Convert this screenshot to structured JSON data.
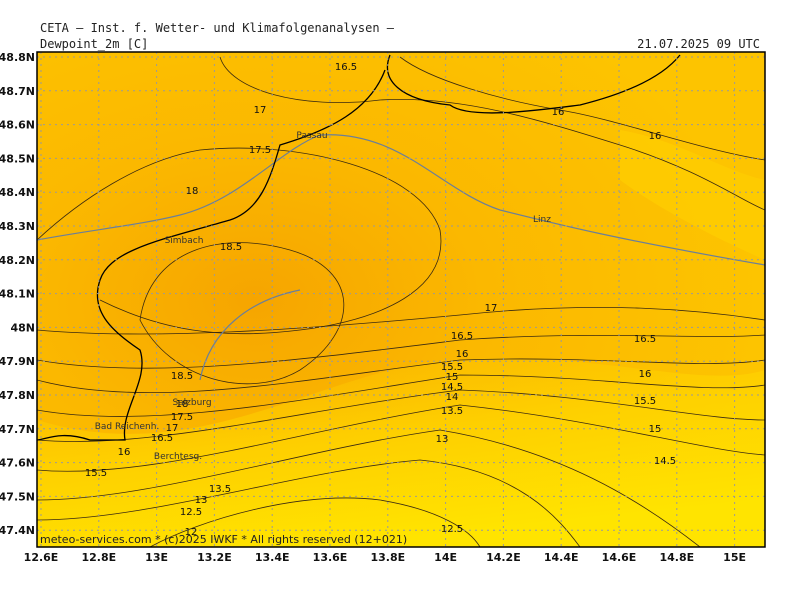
{
  "header": "CETA — Inst. f. Wetter- und Klimafolgenanalysen —",
  "title": "Dewpoint_2m [C]",
  "time": "21.07.2025 09 UTC",
  "lat_ticks": [
    {
      "value": 48.8,
      "label": "48.8N"
    },
    {
      "value": 48.7,
      "label": "48.7N"
    },
    {
      "value": 48.6,
      "label": "48.6N"
    },
    {
      "value": 48.5,
      "label": "48.5N"
    },
    {
      "value": 48.4,
      "label": "48.4N"
    },
    {
      "value": 48.3,
      "label": "48.3N"
    },
    {
      "value": 48.2,
      "label": "48.2N"
    },
    {
      "value": 48.1,
      "label": "48.1N"
    },
    {
      "value": 48.0,
      "label": "48N"
    },
    {
      "value": 47.9,
      "label": "47.9N"
    },
    {
      "value": 47.8,
      "label": "47.8N"
    },
    {
      "value": 47.7,
      "label": "47.7N"
    },
    {
      "value": 47.6,
      "label": "47.6N"
    },
    {
      "value": 47.5,
      "label": "47.5N"
    },
    {
      "value": 47.4,
      "label": "47.4N"
    }
  ],
  "lon_ticks": [
    {
      "value": 12.6,
      "label": "12.6E"
    },
    {
      "value": 12.8,
      "label": "12.8E"
    },
    {
      "value": 13.0,
      "label": "13E"
    },
    {
      "value": 13.2,
      "label": "13.2E"
    },
    {
      "value": 13.4,
      "label": "13.4E"
    },
    {
      "value": 13.6,
      "label": "13.6E"
    },
    {
      "value": 13.8,
      "label": "13.8E"
    },
    {
      "value": 14.0,
      "label": "14E"
    },
    {
      "value": 14.2,
      "label": "14.2E"
    },
    {
      "value": 14.4,
      "label": "14.4E"
    },
    {
      "value": 14.6,
      "label": "14.6E"
    },
    {
      "value": 14.8,
      "label": "14.8E"
    },
    {
      "value": 15.0,
      "label": "15E"
    }
  ],
  "contour_labels": [
    16.5,
    17,
    17.5,
    18,
    18.5,
    16,
    16,
    17,
    16.5,
    16.5,
    16,
    15.5,
    15,
    14.5,
    14,
    13.5,
    13,
    16,
    15.5,
    15,
    14.5,
    18.5,
    18,
    17.5,
    17,
    16.5,
    16,
    15.5,
    13.5,
    13,
    12.5,
    12,
    12.5
  ],
  "cities": [
    "Passau",
    "Linz",
    "Simbach",
    "Salzburg",
    "Bad Reichenh.",
    "Berchtesg."
  ],
  "footer": "meteo-services.com * (c)2025 IWKF * All rights reserved (12+021)"
}
